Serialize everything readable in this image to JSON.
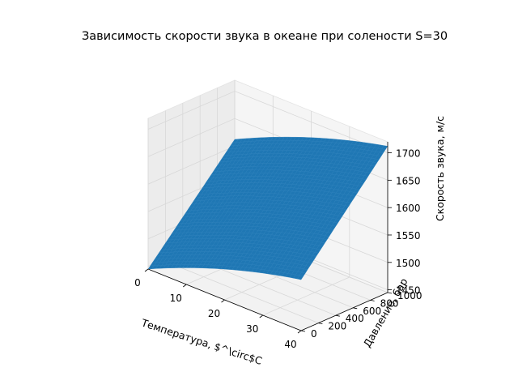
{
  "chart_data": {
    "type": "surface",
    "title": "Зависимость скорости звука в океане при солености S=30",
    "xlabel": "Температура, $^\\circ$C",
    "ylabel": "Давление, бар",
    "zlabel": "Скорость звука, м/с",
    "xlim": [
      0,
      40
    ],
    "ylim": [
      0,
      1000
    ],
    "zlim": [
      1445,
      1720
    ],
    "xticks": [
      0,
      10,
      20,
      30,
      40
    ],
    "yticks": [
      0,
      200,
      400,
      600,
      800,
      1000
    ],
    "zticks": [
      1450,
      1500,
      1550,
      1600,
      1650,
      1700
    ],
    "xtick_labels": [
      "0",
      "10",
      "20",
      "30",
      "40"
    ],
    "ytick_labels": [
      "0",
      "200",
      "400",
      "600",
      "800",
      "1000"
    ],
    "ztick_labels": [
      "1450",
      "1500",
      "1550",
      "1600",
      "1650",
      "1700"
    ],
    "surface_color": "#1f77b4",
    "grid": true,
    "corner_values": [
      {
        "temperature": 0,
        "pressure": 0,
        "speed": 1445
      },
      {
        "temperature": 40,
        "pressure": 0,
        "speed": 1538
      },
      {
        "temperature": 0,
        "pressure": 1000,
        "speed": 1612
      },
      {
        "temperature": 40,
        "pressure": 1000,
        "speed": 1712
      }
    ]
  }
}
